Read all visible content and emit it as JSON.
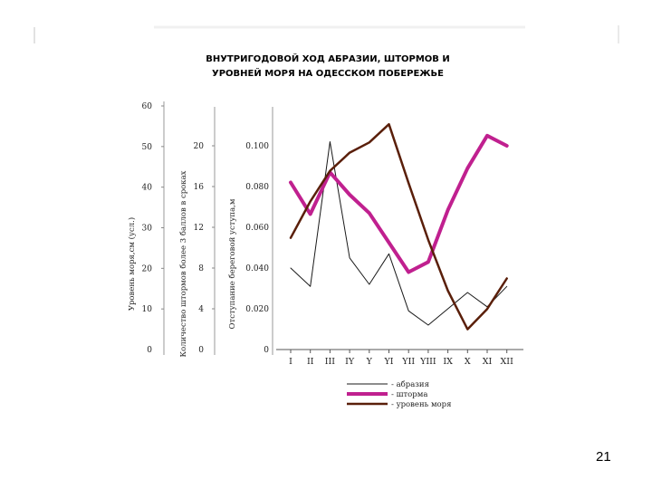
{
  "slide": {
    "number": "21"
  },
  "colors": {
    "abrasion": "#1a1a1a",
    "storms": "#c0208f",
    "sea_level": "#5a1f0a"
  },
  "chart_data": {
    "type": "line",
    "title_lines": [
      "ВНУТРИГОДОВОЙ  ХОД  АБРАЗИИ, ШТОРМОВ И",
      "УРОВНЕЙ МОРЯ НА ОДЕССКОМ ПОБЕРЕЖЬЕ"
    ],
    "categories": [
      "I",
      "II",
      "III",
      "IY",
      "Y",
      "YI",
      "YII",
      "YIII",
      "IX",
      "X",
      "XI",
      "XII"
    ],
    "axes": [
      {
        "key": "sea_level",
        "label": "Уровень моря,см (усл.)",
        "ylim": [
          0,
          60
        ],
        "ticks": [
          "0",
          "10",
          "20",
          "30",
          "40",
          "50",
          "60"
        ]
      },
      {
        "key": "storms",
        "label": "Количество штормов более 3 баллов в сроках",
        "ylim": [
          0,
          20
        ],
        "ticks": [
          "0",
          "4",
          "8",
          "12",
          "16",
          "20"
        ]
      },
      {
        "key": "abrasion",
        "label": "Отступание береговой уступа,м",
        "ylim": [
          0,
          0.1
        ],
        "ticks": [
          "0",
          "0.020",
          "0.040",
          "0.060",
          "0.080",
          "0.100"
        ]
      }
    ],
    "series": [
      {
        "name": "- абразия",
        "axis": "abrasion",
        "color": "#1a1a1a",
        "width": 1,
        "values": [
          0.04,
          0.031,
          0.102,
          0.045,
          0.032,
          0.047,
          0.019,
          0.012,
          0.02,
          0.028,
          0.021,
          0.031
        ]
      },
      {
        "name": "- шторма",
        "axis": "storms",
        "color": "#c0208f",
        "width": 4,
        "values": [
          16.4,
          13.3,
          17.4,
          15.2,
          13.4,
          10.5,
          7.6,
          8.6,
          13.7,
          17.8,
          21.0,
          20.0
        ]
      },
      {
        "name": "- уровень моря",
        "axis": "sea_level",
        "color": "#5a1f0a",
        "width": 2.5,
        "values": [
          27.5,
          36.5,
          44.0,
          48.5,
          51.0,
          55.5,
          41.0,
          27.0,
          14.5,
          5.0,
          10.0,
          17.5
        ]
      }
    ],
    "grid": false,
    "legend_position": "bottom"
  }
}
